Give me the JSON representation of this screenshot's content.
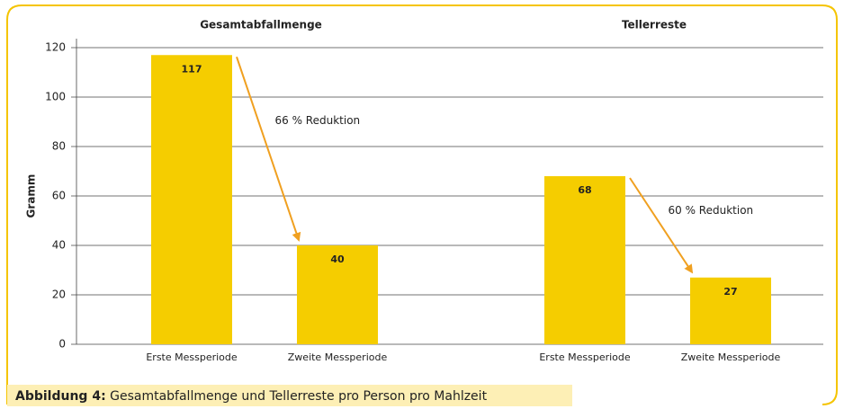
{
  "chart_data": {
    "type": "bar",
    "ylabel": "Gramm",
    "ylim": [
      0,
      120
    ],
    "yticks": [
      0,
      20,
      40,
      60,
      80,
      100,
      120
    ],
    "grid": true,
    "color": "#f5cd00",
    "arrow_color": "#f0a020",
    "groups": [
      {
        "title": "Gesamtabfallmenge",
        "categories": [
          "Erste Messperiode",
          "Zweite Messperiode"
        ],
        "values": [
          117,
          40
        ],
        "annotation": "66 % Reduktion"
      },
      {
        "title": "Tellerreste",
        "categories": [
          "Erste Messperiode",
          "Zweite Messperiode"
        ],
        "values": [
          68,
          27
        ],
        "annotation": "60 % Reduktion"
      }
    ]
  },
  "caption": {
    "label": "Abbildung 4:",
    "text": "Gesamtabfallmenge und Tellerreste pro Person pro Mahlzeit"
  }
}
